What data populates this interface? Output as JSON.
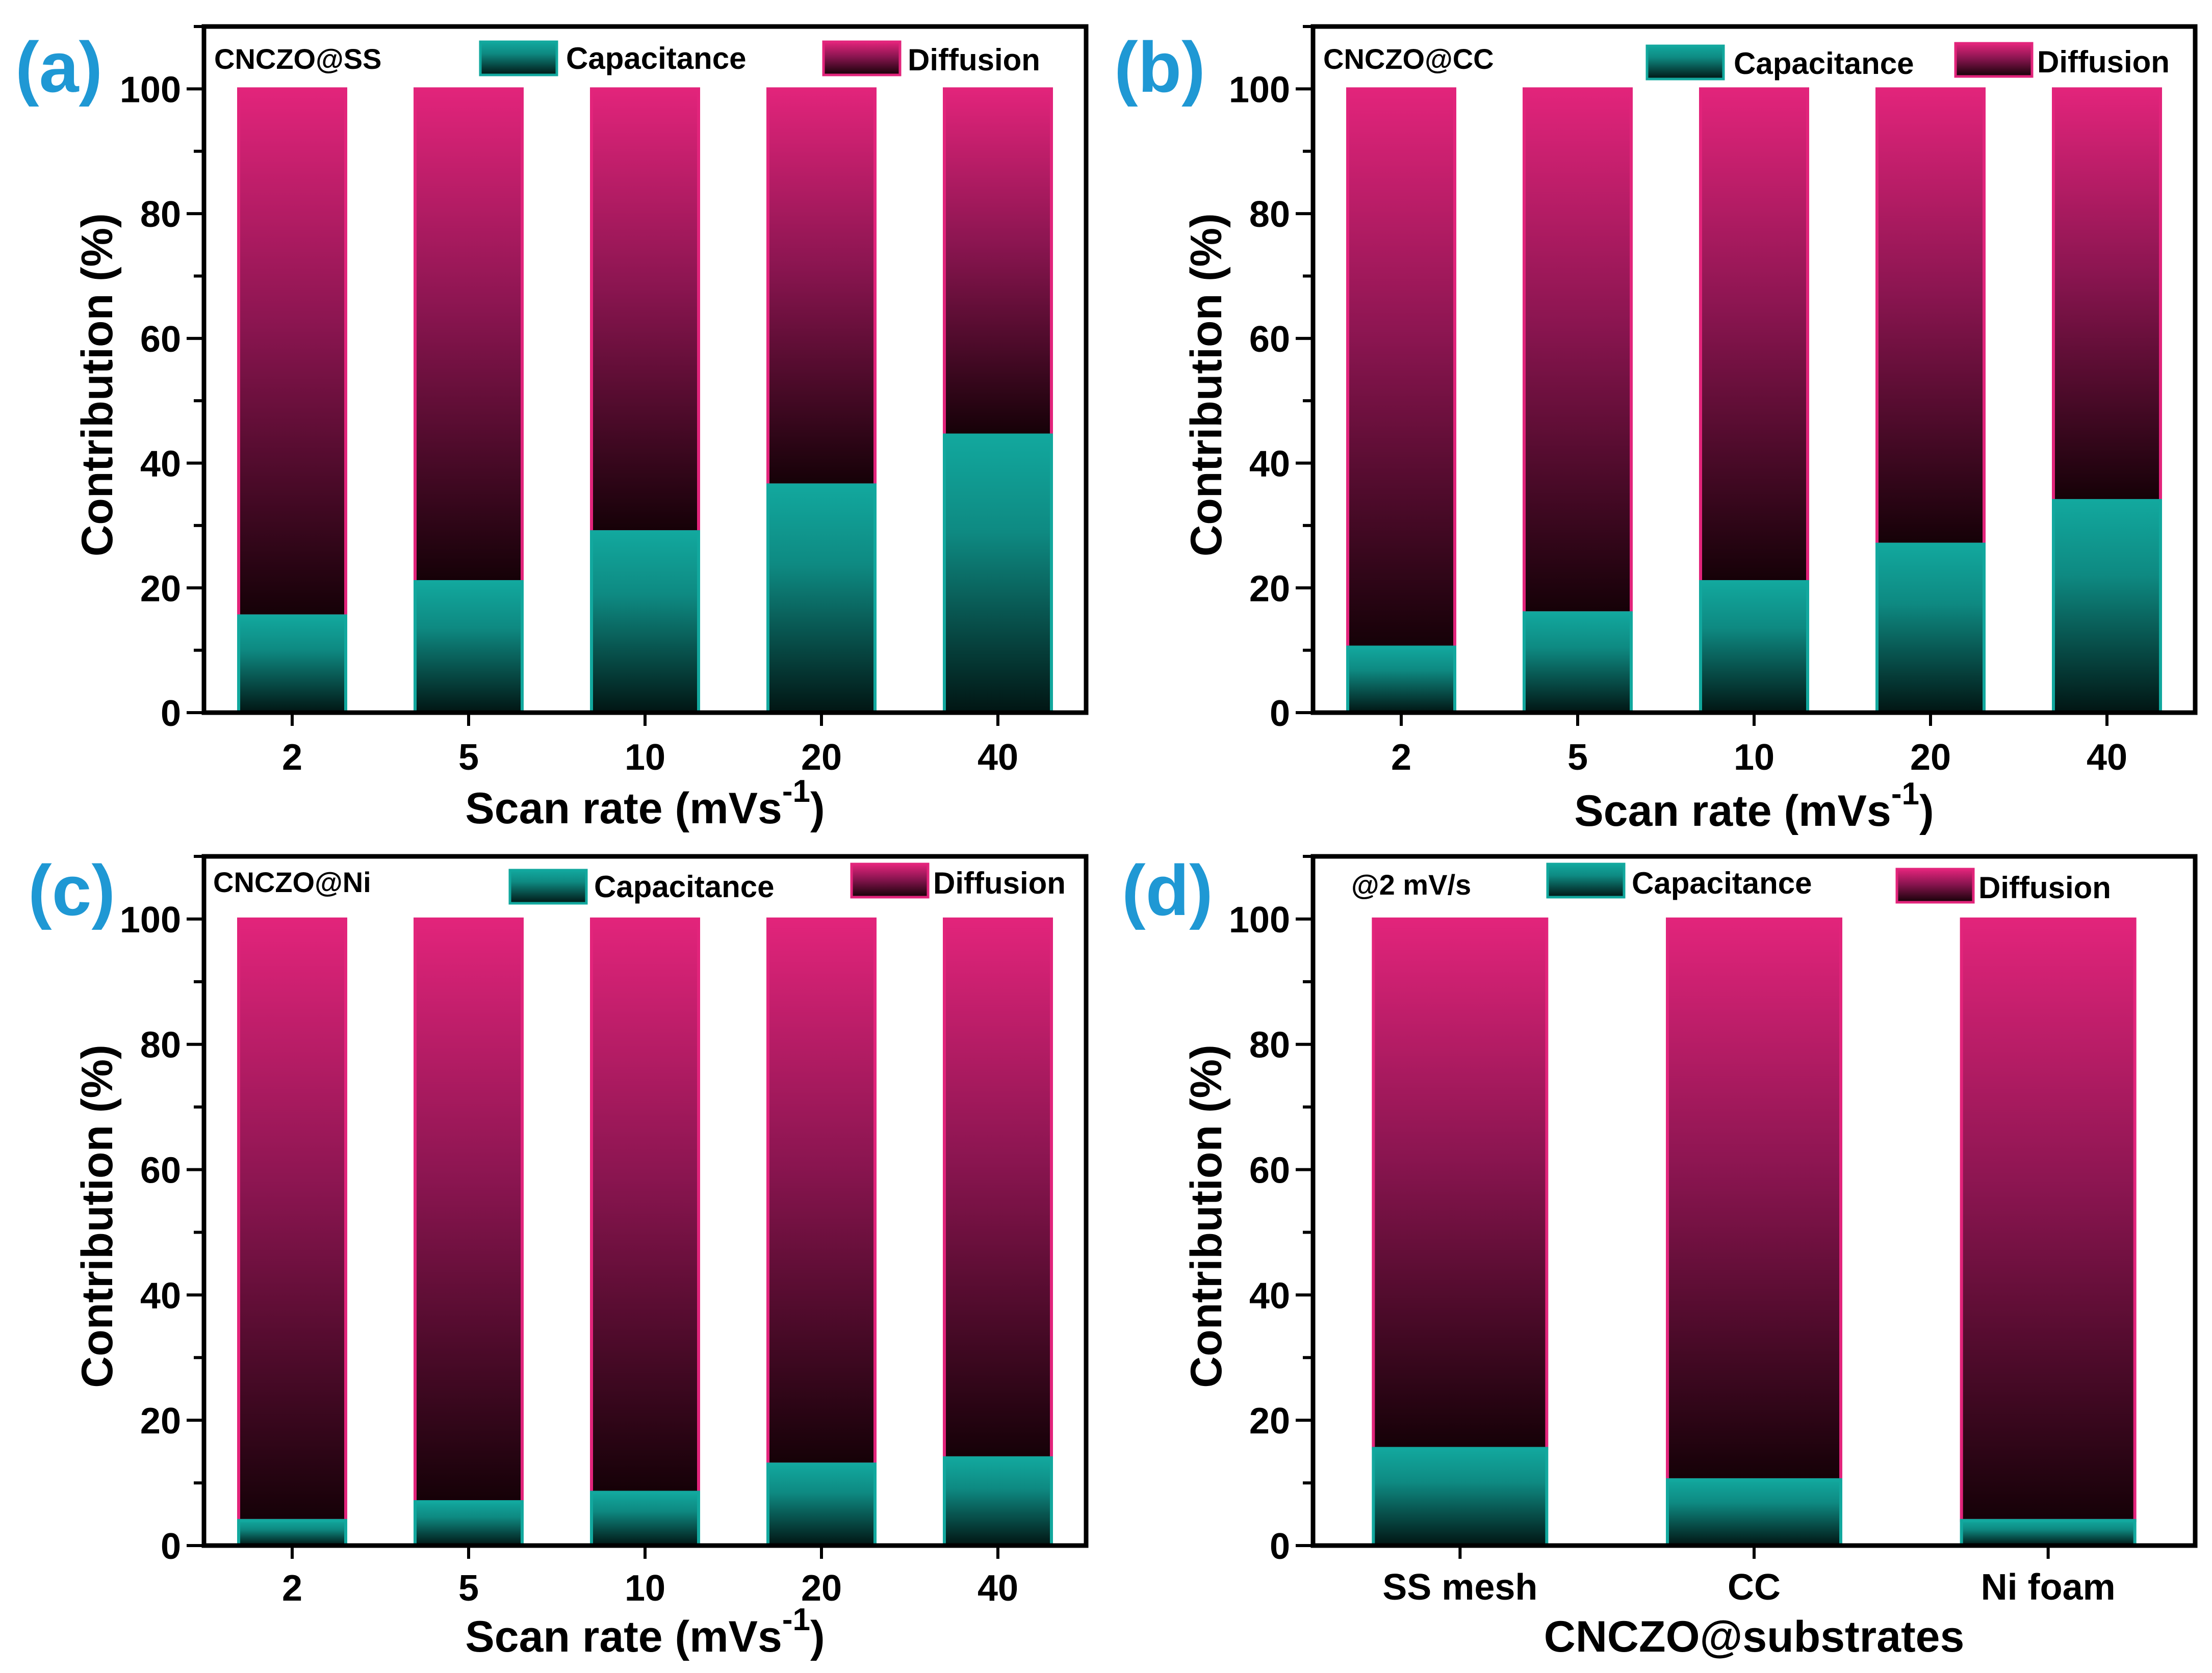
{
  "colors": {
    "capacitance_top": "#12a89e",
    "capacitance_bottom": "#011513",
    "diffusion_top": "#e2247b",
    "diffusion_bottom": "#150107",
    "panel_letter": "#1f98d4",
    "axis": "#000000"
  },
  "chart_data": [
    {
      "type": "bar",
      "stacked": true,
      "panel_label": "(a)",
      "sample_label": "CNCZO@SS",
      "legend": {
        "capacitance": "Capacitance",
        "diffusion": "Diffusion"
      },
      "categories": [
        "2",
        "5",
        "10",
        "20",
        "40"
      ],
      "series": [
        {
          "name": "Capacitance",
          "values": [
            15.5,
            21,
            29,
            36.5,
            44.5
          ]
        },
        {
          "name": "Diffusion",
          "values": [
            84.5,
            79,
            71,
            63.5,
            55.5
          ]
        }
      ],
      "xlabel": "Scan rate (mVs",
      "xlabel_sup": "-1",
      "xlabel_tail": ")",
      "ylabel": "Contribution (%)",
      "ylim": [
        0,
        110
      ],
      "yticks": [
        "0",
        "20",
        "40",
        "60",
        "80",
        "100"
      ]
    },
    {
      "type": "bar",
      "stacked": true,
      "panel_label": "(b)",
      "sample_label": "CNCZO@CC",
      "legend": {
        "capacitance": "Capacitance",
        "diffusion": "Diffusion"
      },
      "categories": [
        "2",
        "5",
        "10",
        "20",
        "40"
      ],
      "series": [
        {
          "name": "Capacitance",
          "values": [
            10.5,
            16,
            21,
            27,
            34
          ]
        },
        {
          "name": "Diffusion",
          "values": [
            89.5,
            84,
            79,
            73,
            66
          ]
        }
      ],
      "xlabel": "Scan rate (mVs",
      "xlabel_sup": "-1",
      "xlabel_tail": ")",
      "ylabel": "Contribution (%)",
      "ylim": [
        0,
        110
      ],
      "yticks": [
        "0",
        "20",
        "40",
        "60",
        "80",
        "100"
      ]
    },
    {
      "type": "bar",
      "stacked": true,
      "panel_label": "(c)",
      "sample_label": "CNCZO@Ni",
      "legend": {
        "capacitance": "Capacitance",
        "diffusion": "Diffusion"
      },
      "categories": [
        "2",
        "5",
        "10",
        "20",
        "40"
      ],
      "series": [
        {
          "name": "Capacitance",
          "values": [
            4,
            7,
            8.5,
            13,
            14
          ]
        },
        {
          "name": "Diffusion",
          "values": [
            96,
            93,
            91.5,
            87,
            86
          ]
        }
      ],
      "xlabel": "Scan rate (mVs",
      "xlabel_sup": "-1",
      "xlabel_tail": ")",
      "ylabel": "Contribution (%)",
      "ylim": [
        0,
        110
      ],
      "yticks": [
        "0",
        "20",
        "40",
        "60",
        "80",
        "100"
      ]
    },
    {
      "type": "bar",
      "stacked": true,
      "panel_label": "(d)",
      "sample_label": "@2 mV/s",
      "legend": {
        "capacitance": "Capacitance",
        "diffusion": "Diffusion"
      },
      "categories": [
        "SS mesh",
        "CC",
        "Ni foam"
      ],
      "series": [
        {
          "name": "Capacitance",
          "values": [
            15.5,
            10.5,
            4
          ]
        },
        {
          "name": "Diffusion",
          "values": [
            84.5,
            89.5,
            96
          ]
        }
      ],
      "xlabel": "CNCZO@substrates",
      "xlabel_sup": "",
      "xlabel_tail": "",
      "ylabel": "Contribution (%)",
      "ylim": [
        0,
        110
      ],
      "yticks": [
        "0",
        "20",
        "40",
        "60",
        "80",
        "100"
      ]
    }
  ]
}
